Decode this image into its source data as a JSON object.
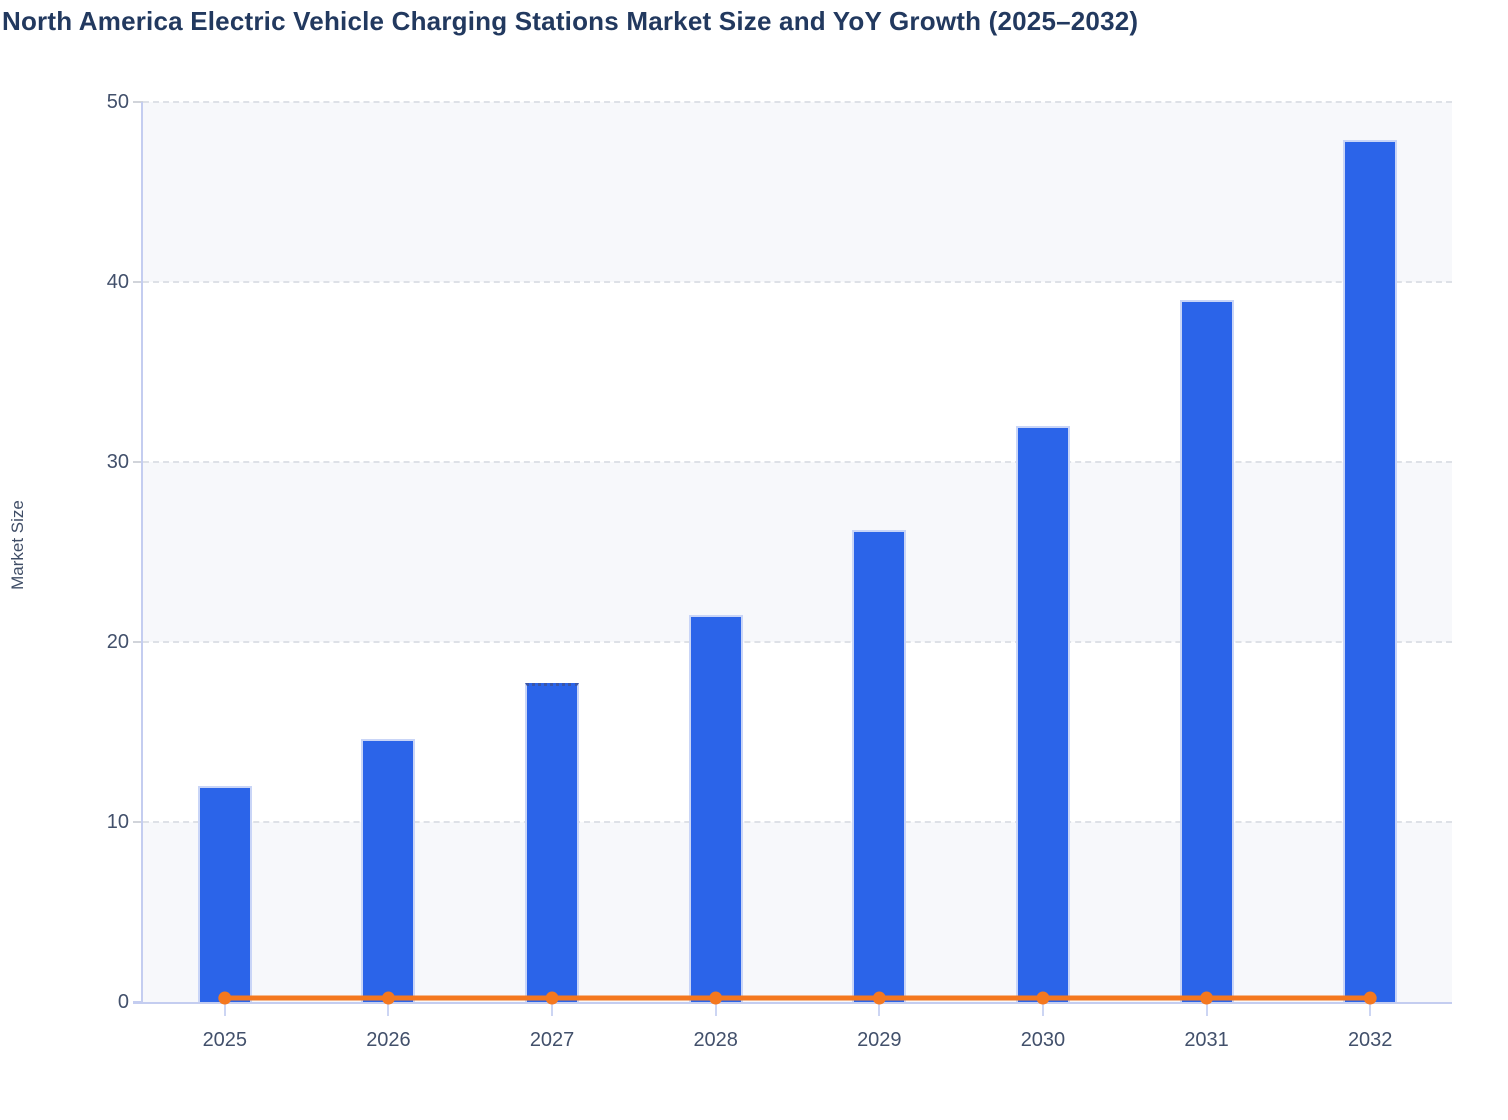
{
  "title": "North America Electric Vehicle Charging Stations Market Size and YoY Growth (2025–2032)",
  "chart_data": {
    "type": "bar",
    "title": "North America Electric Vehicle Charging Stations Market Size and YoY Growth (2025–2032)",
    "categories": [
      "2025",
      "2026",
      "2027",
      "2028",
      "2029",
      "2030",
      "2031",
      "2032"
    ],
    "series": [
      {
        "name": "Market Size",
        "type": "bar",
        "values": [
          12.0,
          14.6,
          17.7,
          21.5,
          26.2,
          32.0,
          39.0,
          47.9
        ],
        "color": "#2b64e9"
      },
      {
        "name": "YoY Growth",
        "type": "line",
        "values": [
          0.22,
          0.22,
          0.22,
          0.22,
          0.22,
          0.22,
          0.22,
          0.22
        ],
        "color": "#f4781f"
      }
    ],
    "xlabel": "",
    "ylabel": "Market Size",
    "ylim": [
      0,
      50
    ],
    "yticks": [
      0,
      10,
      20,
      30,
      40,
      50
    ],
    "grid": "horizontal-dashed",
    "plot_bands": "alternating-shaded",
    "legend_position": "none",
    "special_marks": {
      "dotted_top_bar_category": "2027"
    }
  }
}
